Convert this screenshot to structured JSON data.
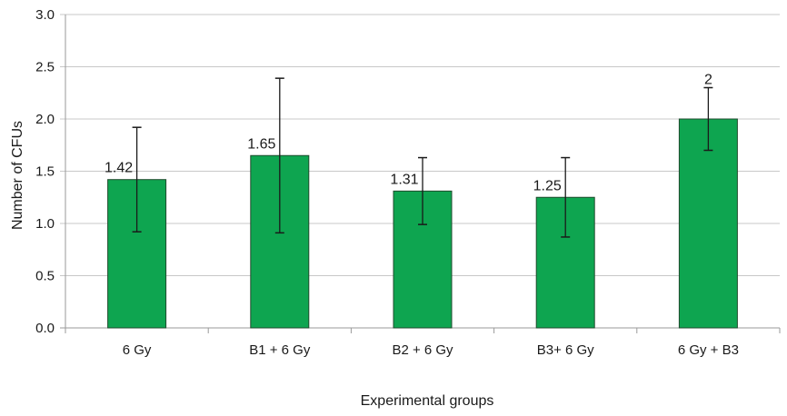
{
  "chart_data": {
    "type": "bar",
    "title": "",
    "xlabel": "Experimental groups",
    "ylabel": "Number of CFUs",
    "categories": [
      "6 Gy",
      "B1 + 6 Gy",
      "B2 + 6 Gy",
      "B3+ 6 Gy",
      "6 Gy + B3"
    ],
    "values": [
      1.42,
      1.65,
      1.31,
      1.25,
      2.0
    ],
    "data_labels": [
      "1.42",
      "1.65",
      "1.31",
      "1.25",
      "2"
    ],
    "error_bars": [
      {
        "low": 0.92,
        "high": 1.92
      },
      {
        "low": 0.91,
        "high": 2.39
      },
      {
        "low": 0.99,
        "high": 1.63
      },
      {
        "low": 0.87,
        "high": 1.63
      },
      {
        "low": 1.7,
        "high": 2.3
      }
    ],
    "ylim": [
      0,
      3.0
    ],
    "yticks": [
      "0.0",
      "0.5",
      "1.0",
      "1.5",
      "2.0",
      "2.5",
      "3.0"
    ],
    "ytick_values": [
      0,
      0.5,
      1.0,
      1.5,
      2.0,
      2.5,
      3.0
    ],
    "grid": true,
    "legend": "none",
    "colors": {
      "bar_fill": "#0ea550",
      "bar_stroke": "#1f4a2c",
      "grid": "#c8c8c8",
      "error": "#1a1a1a"
    }
  }
}
